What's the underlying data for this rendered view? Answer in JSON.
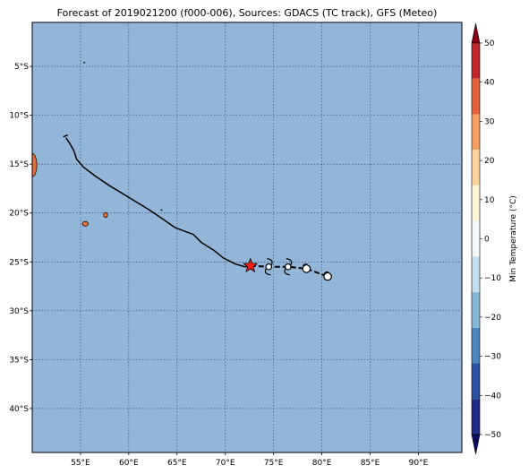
{
  "title": "Forecast of 2019021200 (f000-006), Sources: GDACS (TC track), GFS (Meteo)",
  "colors": {
    "ocean": "#92b5d8",
    "grid": "#1a2a4a",
    "track": "#000000",
    "land": "#e8703a",
    "current_position": "#ff1a1a"
  },
  "map": {
    "lon_range": [
      50,
      94.5
    ],
    "lat_range": [
      -44.5,
      -0.5
    ],
    "lon_ticks": [
      55,
      60,
      65,
      70,
      75,
      80,
      85,
      90
    ],
    "lon_tick_labels": [
      "55°E",
      "60°E",
      "65°E",
      "70°E",
      "75°E",
      "80°E",
      "85°E",
      "90°E"
    ],
    "lat_ticks": [
      -5,
      -10,
      -15,
      -20,
      -25,
      -30,
      -35,
      -40
    ],
    "lat_tick_labels": [
      "5°S",
      "10°S",
      "15°S",
      "20°S",
      "25°S",
      "30°S",
      "35°S",
      "40°S"
    ],
    "gridlines": true
  },
  "track": {
    "past_points": [
      [
        53.5,
        -12.3
      ],
      [
        53.9,
        -12.9
      ],
      [
        54.3,
        -13.6
      ],
      [
        54.6,
        -14.5
      ],
      [
        55.3,
        -15.3
      ],
      [
        56.5,
        -16.2
      ],
      [
        58.0,
        -17.2
      ],
      [
        60.0,
        -18.4
      ],
      [
        62.0,
        -19.6
      ],
      [
        63.5,
        -20.6
      ],
      [
        64.8,
        -21.5
      ],
      [
        66.7,
        -22.2
      ],
      [
        67.5,
        -23.0
      ],
      [
        68.8,
        -23.8
      ],
      [
        69.8,
        -24.6
      ],
      [
        71.0,
        -25.2
      ],
      [
        72.0,
        -25.5
      ],
      [
        72.6,
        -25.4
      ]
    ],
    "current_position": [
      72.6,
      -25.4
    ],
    "forecast_points": [
      [
        72.6,
        -25.4
      ],
      [
        74.5,
        -25.5
      ],
      [
        76.5,
        -25.5
      ],
      [
        78.4,
        -25.7
      ],
      [
        80.6,
        -26.5
      ]
    ],
    "forecast_markers": [
      {
        "lon": 74.5,
        "lat": -25.5,
        "symbol": "hurricane"
      },
      {
        "lon": 76.5,
        "lat": -25.5,
        "symbol": "hurricane"
      },
      {
        "lon": 78.4,
        "lat": -25.7,
        "symbol": "storm"
      },
      {
        "lon": 80.6,
        "lat": -26.5,
        "symbol": "storm"
      }
    ]
  },
  "islands": [
    {
      "name": "Madagascar-edge",
      "lon": 50.1,
      "lat": -15.0
    },
    {
      "name": "Reunion",
      "lon": 55.5,
      "lat": -21.1
    },
    {
      "name": "Mauritius",
      "lon": 57.6,
      "lat": -20.2
    }
  ],
  "colorbar": {
    "label": "Min Temperature (°C)",
    "min": -50,
    "max": 50,
    "ticks": [
      50,
      40,
      30,
      20,
      10,
      0,
      -10,
      -20,
      -30,
      -40,
      -50
    ],
    "tick_labels": [
      "50",
      "40",
      "30",
      "20",
      "10",
      "0",
      "−10",
      "−20",
      "−30",
      "−40",
      "−50"
    ],
    "colors": [
      "#0c0c5e",
      "#1f2a85",
      "#2b52a2",
      "#4d87bd",
      "#86b9d8",
      "#c2e0ee",
      "#f1f9fb",
      "#fff6d8",
      "#fdd39a",
      "#f79e62",
      "#e45f3c",
      "#c0262a",
      "#850019"
    ]
  }
}
